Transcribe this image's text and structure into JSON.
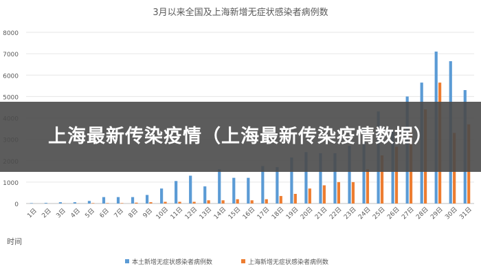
{
  "overlay": {
    "text": "上海最新传染疫情（上海最新传染疫情数据）"
  },
  "chart_data": {
    "type": "bar",
    "title": "3月以来全国及上海新增无症状感染者病例数",
    "xlabel": "时间",
    "ylabel": "",
    "ylim": [
      0,
      8000
    ],
    "yticks": [
      "0",
      "1000",
      "2000",
      "3000",
      "4000",
      "5000",
      "6000",
      "7000",
      "8000"
    ],
    "grid": true,
    "legend_position": "bottom",
    "categories": [
      "1日",
      "2日",
      "3日",
      "4日",
      "5日",
      "6日",
      "7日",
      "8日",
      "9日",
      "10日",
      "11日",
      "12日",
      "13日",
      "14日",
      "15日",
      "16日",
      "17日",
      "18日",
      "19日",
      "20日",
      "21日",
      "22日",
      "23日",
      "24日",
      "25日",
      "26日",
      "27日",
      "28日",
      "29日",
      "30日",
      "31日"
    ],
    "series": [
      {
        "name": "本土新增无症状感染者病例数",
        "color": "#5b9bd5",
        "values": [
          20,
          30,
          60,
          60,
          120,
          300,
          300,
          300,
          400,
          700,
          1050,
          1300,
          800,
          1600,
          1200,
          1200,
          1750,
          1700,
          2150,
          2400,
          2350,
          2350,
          2700,
          3500,
          4300,
          3400,
          5000,
          5650,
          7100,
          6650,
          5300
        ]
      },
      {
        "name": "上海新增无症状感染者病例数",
        "color": "#ed7d31",
        "values": [
          0,
          0,
          5,
          5,
          20,
          20,
          20,
          40,
          60,
          80,
          80,
          80,
          150,
          150,
          200,
          150,
          200,
          350,
          450,
          700,
          850,
          1000,
          1000,
          1600,
          2250,
          2650,
          3500,
          4400,
          5650,
          3300,
          3700
        ]
      }
    ]
  }
}
